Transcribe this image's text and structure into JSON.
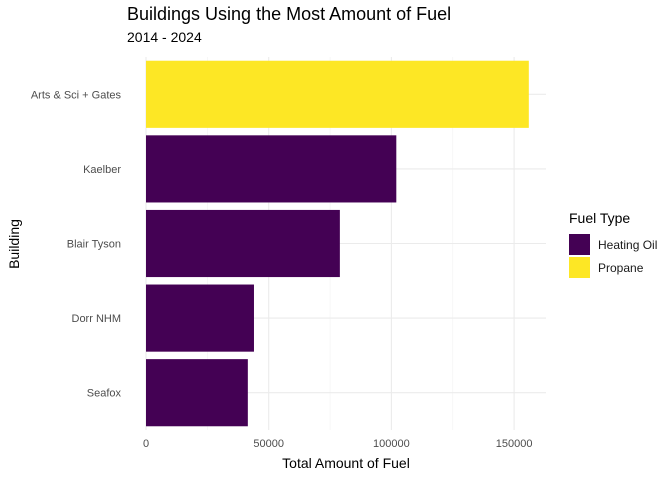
{
  "chart_data": {
    "type": "bar",
    "orientation": "horizontal",
    "title": "Buildings Using the Most Amount of Fuel",
    "subtitle": "2014 - 2024",
    "xlabel": "Total Amount of Fuel",
    "ylabel": "Building",
    "xlim": [
      0,
      163000
    ],
    "xticks": [
      0,
      50000,
      100000,
      150000
    ],
    "xtick_labels": [
      "0",
      "50000",
      "100000",
      "150000"
    ],
    "categories": [
      "Arts & Sci + Gates",
      "Kaelber",
      "Blair Tyson",
      "Dorr NHM",
      "Seafox"
    ],
    "values": [
      156000,
      102000,
      79000,
      44000,
      41500
    ],
    "fuel_type": [
      "Propane",
      "Heating Oil",
      "Heating Oil",
      "Heating Oil",
      "Heating Oil"
    ],
    "grid": true,
    "legend": {
      "title": "Fuel Type",
      "placement": "right",
      "entries": [
        {
          "name": "Heating Oil",
          "color": "#440154"
        },
        {
          "name": "Propane",
          "color": "#FDE725"
        }
      ]
    }
  }
}
